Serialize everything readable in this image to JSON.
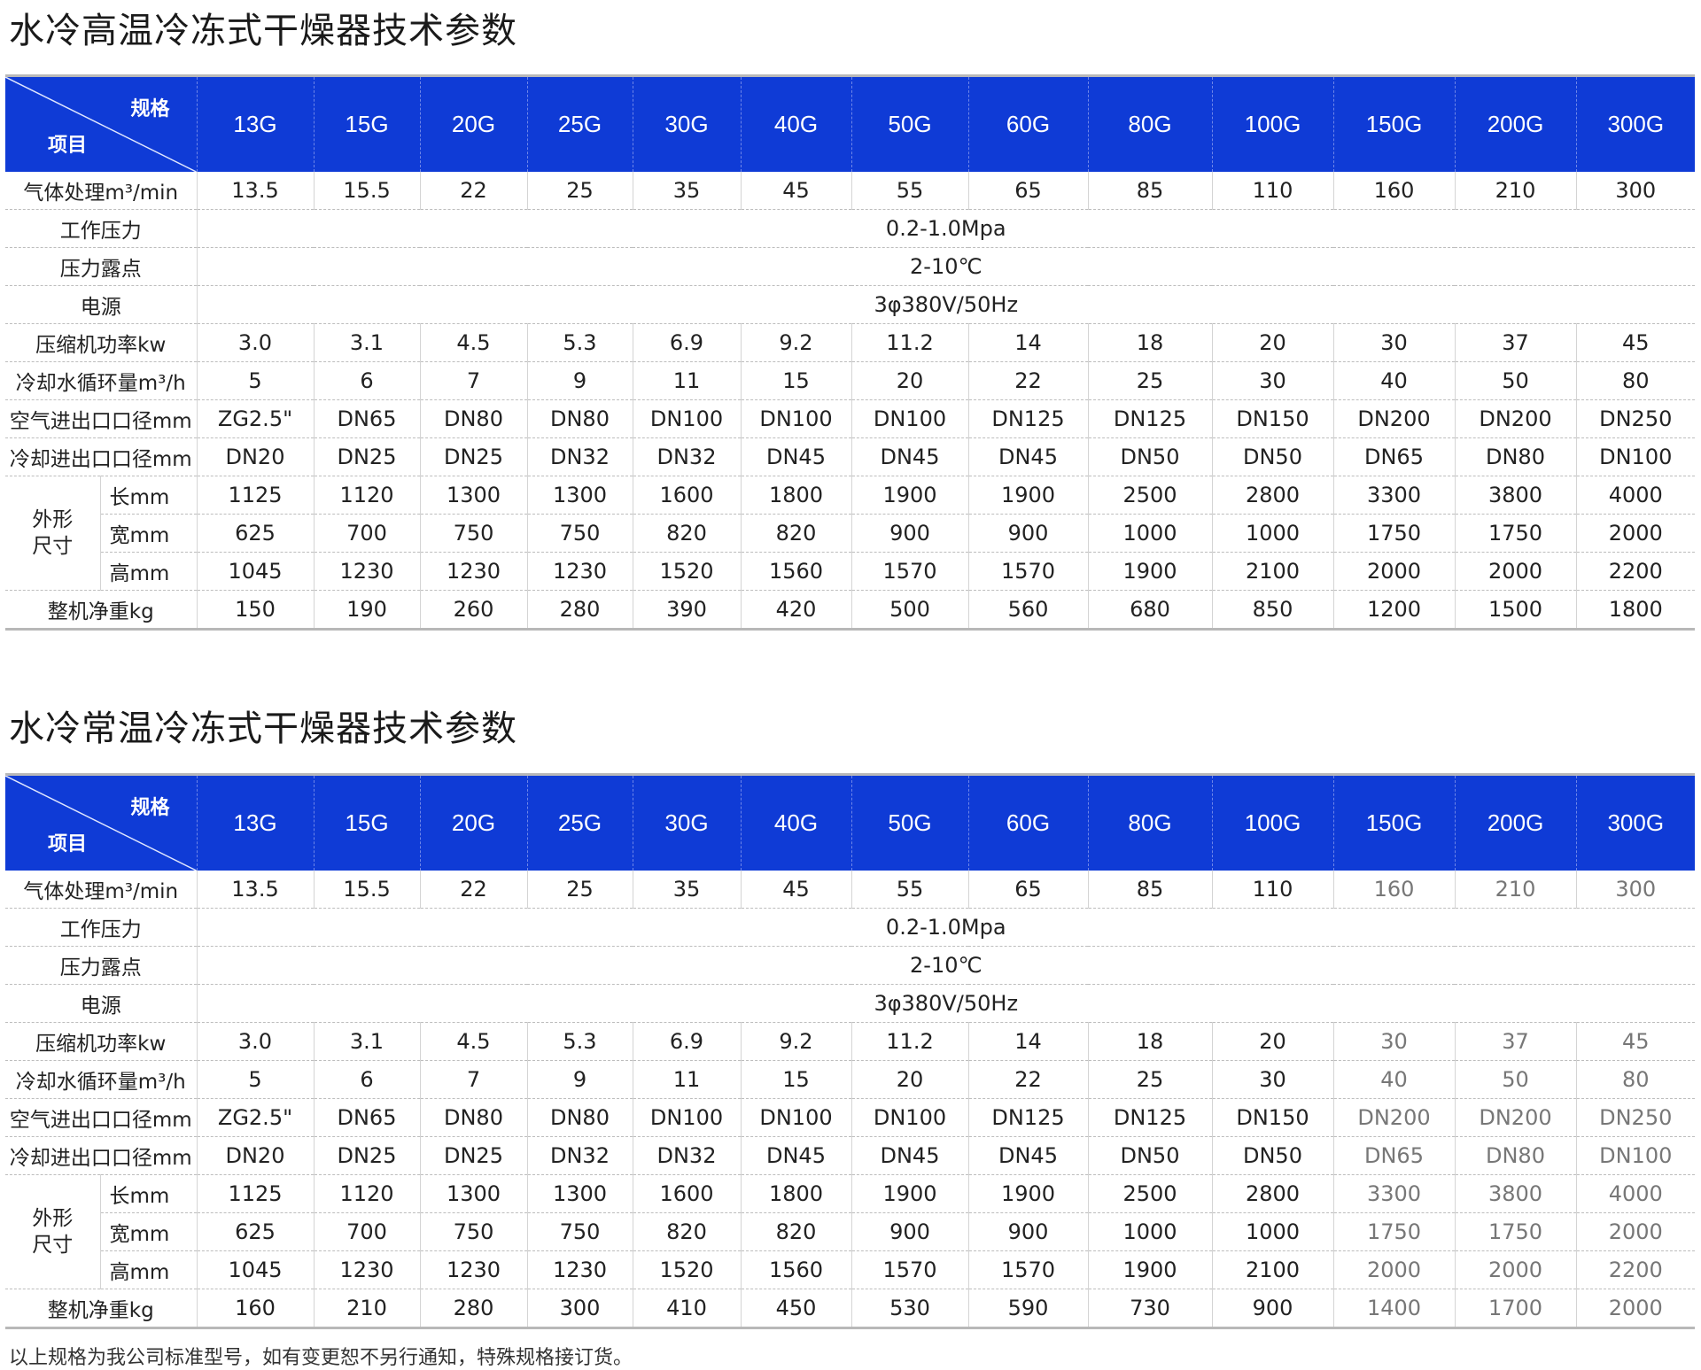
{
  "tables": [
    {
      "title": "水冷高温冷冻式干燥器技术参数",
      "corner_spec": "规格",
      "corner_item": "项目",
      "models": [
        "13G",
        "15G",
        "20G",
        "25G",
        "30G",
        "40G",
        "50G",
        "60G",
        "80G",
        "100G",
        "150G",
        "200G",
        "300G"
      ],
      "rows": [
        {
          "label": "气体处理m³/min",
          "values": [
            "13.5",
            "15.5",
            "22",
            "25",
            "35",
            "45",
            "55",
            "65",
            "85",
            "110",
            "160",
            "210",
            "300"
          ]
        },
        {
          "label": "工作压力",
          "span": "0.2-1.0Mpa"
        },
        {
          "label": "压力露点",
          "span": "2-10℃"
        },
        {
          "label": "电源",
          "span": "3φ380V/50Hz"
        },
        {
          "label": "压缩机功率kw",
          "values": [
            "3.0",
            "3.1",
            "4.5",
            "5.3",
            "6.9",
            "9.2",
            "11.2",
            "14",
            "18",
            "20",
            "30",
            "37",
            "45"
          ]
        },
        {
          "label": "冷却水循环量m³/h",
          "values": [
            "5",
            "6",
            "7",
            "9",
            "11",
            "15",
            "20",
            "22",
            "25",
            "30",
            "40",
            "50",
            "80"
          ]
        },
        {
          "label": "空气进出口口径mm",
          "values": [
            "ZG2.5\"",
            "DN65",
            "DN80",
            "DN80",
            "DN100",
            "DN100",
            "DN100",
            "DN125",
            "DN125",
            "DN150",
            "DN200",
            "DN200",
            "DN250"
          ]
        },
        {
          "label": "冷却进出口口径mm",
          "values": [
            "DN20",
            "DN25",
            "DN25",
            "DN32",
            "DN32",
            "DN45",
            "DN45",
            "DN45",
            "DN50",
            "DN50",
            "DN65",
            "DN80",
            "DN100"
          ]
        },
        {
          "group": "外形尺寸",
          "label": "长mm",
          "values": [
            "1125",
            "1120",
            "1300",
            "1300",
            "1600",
            "1800",
            "1900",
            "1900",
            "2500",
            "2800",
            "3300",
            "3800",
            "4000"
          ]
        },
        {
          "group": "外形尺寸",
          "label": "宽mm",
          "values": [
            "625",
            "700",
            "750",
            "750",
            "820",
            "820",
            "900",
            "900",
            "1000",
            "1000",
            "1750",
            "1750",
            "2000"
          ]
        },
        {
          "group": "外形尺寸",
          "label": "高mm",
          "values": [
            "1045",
            "1230",
            "1230",
            "1230",
            "1520",
            "1560",
            "1570",
            "1570",
            "1900",
            "2100",
            "2000",
            "2000",
            "2200"
          ]
        },
        {
          "label": "整机净重kg",
          "values": [
            "150",
            "190",
            "260",
            "280",
            "390",
            "420",
            "500",
            "560",
            "680",
            "850",
            "1200",
            "1500",
            "1800"
          ]
        }
      ]
    },
    {
      "title": "水冷常温冷冻式干燥器技术参数",
      "corner_spec": "规格",
      "corner_item": "项目",
      "models": [
        "13G",
        "15G",
        "20G",
        "25G",
        "30G",
        "40G",
        "50G",
        "60G",
        "80G",
        "100G",
        "150G",
        "200G",
        "300G"
      ],
      "rows": [
        {
          "label": "气体处理m³/min",
          "values": [
            "13.5",
            "15.5",
            "22",
            "25",
            "35",
            "45",
            "55",
            "65",
            "85",
            "110",
            "160",
            "210",
            "300"
          ]
        },
        {
          "label": "工作压力",
          "span": "0.2-1.0Mpa"
        },
        {
          "label": "压力露点",
          "span": "2-10℃"
        },
        {
          "label": "电源",
          "span": "3φ380V/50Hz"
        },
        {
          "label": "压缩机功率kw",
          "values": [
            "3.0",
            "3.1",
            "4.5",
            "5.3",
            "6.9",
            "9.2",
            "11.2",
            "14",
            "18",
            "20",
            "30",
            "37",
            "45"
          ]
        },
        {
          "label": "冷却水循环量m³/h",
          "values": [
            "5",
            "6",
            "7",
            "9",
            "11",
            "15",
            "20",
            "22",
            "25",
            "30",
            "40",
            "50",
            "80"
          ]
        },
        {
          "label": "空气进出口口径mm",
          "values": [
            "ZG2.5\"",
            "DN65",
            "DN80",
            "DN80",
            "DN100",
            "DN100",
            "DN100",
            "DN125",
            "DN125",
            "DN150",
            "DN200",
            "DN200",
            "DN250"
          ]
        },
        {
          "label": "冷却进出口口径mm",
          "values": [
            "DN20",
            "DN25",
            "DN25",
            "DN32",
            "DN32",
            "DN45",
            "DN45",
            "DN45",
            "DN50",
            "DN50",
            "DN65",
            "DN80",
            "DN100"
          ]
        },
        {
          "group": "外形尺寸",
          "label": "长mm",
          "values": [
            "1125",
            "1120",
            "1300",
            "1300",
            "1600",
            "1800",
            "1900",
            "1900",
            "2500",
            "2800",
            "3300",
            "3800",
            "4000"
          ]
        },
        {
          "group": "外形尺寸",
          "label": "宽mm",
          "values": [
            "625",
            "700",
            "750",
            "750",
            "820",
            "820",
            "900",
            "900",
            "1000",
            "1000",
            "1750",
            "1750",
            "2000"
          ]
        },
        {
          "group": "外形尺寸",
          "label": "高mm",
          "values": [
            "1045",
            "1230",
            "1230",
            "1230",
            "1520",
            "1560",
            "1570",
            "1570",
            "1900",
            "2100",
            "2000",
            "2000",
            "2200"
          ]
        },
        {
          "label": "整机净重kg",
          "values": [
            "160",
            "210",
            "280",
            "300",
            "410",
            "450",
            "530",
            "590",
            "730",
            "900",
            "1400",
            "1700",
            "2000"
          ]
        }
      ]
    }
  ],
  "footnote": "以上规格为我公司标准型号，如有变更恕不另行通知，特殊规格接订货。",
  "colors": {
    "header_bg": "#0f3bd6",
    "header_text": "#ffffff"
  }
}
